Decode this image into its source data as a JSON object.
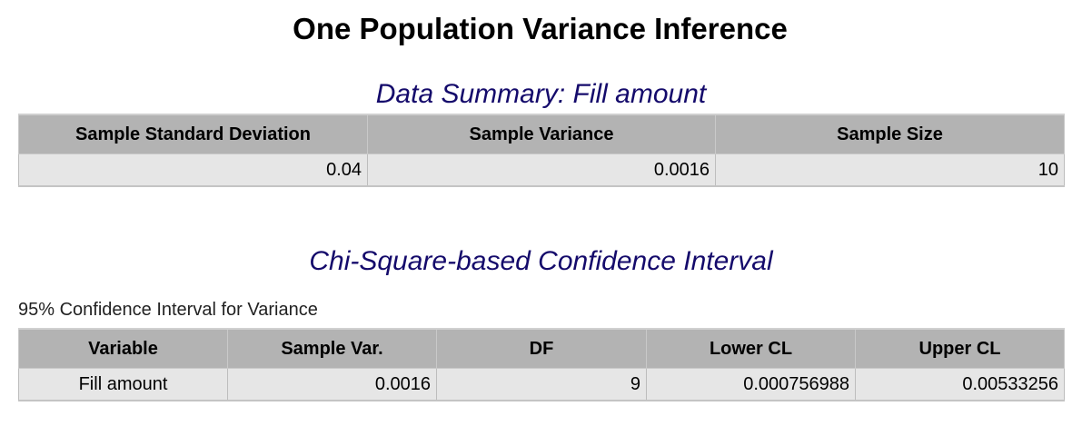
{
  "page": {
    "title": "One Population Variance Inference"
  },
  "summary": {
    "heading": "Data Summary: Fill amount",
    "columns": [
      "Sample Standard Deviation",
      "Sample Variance",
      "Sample Size"
    ],
    "row": [
      "0.04",
      "0.0016",
      "10"
    ]
  },
  "ci": {
    "heading": "Chi-Square-based Confidence Interval",
    "caption": "95% Confidence Interval for Variance",
    "columns": [
      "Variable",
      "Sample Var.",
      "DF",
      "Lower CL",
      "Upper CL"
    ],
    "row": [
      "Fill amount",
      "0.0016",
      "9",
      "0.000756988",
      "0.00533256"
    ]
  }
}
